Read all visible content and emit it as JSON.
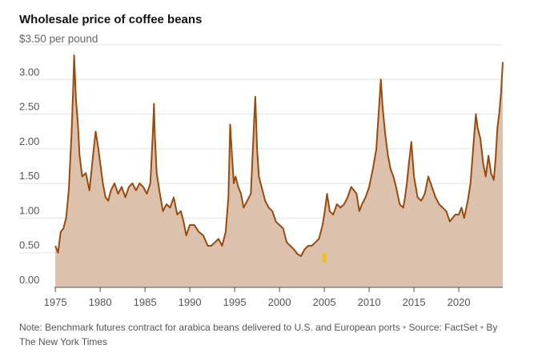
{
  "header": {
    "title": "Wholesale price of coffee beans",
    "subtitle": "$3.50 per pound"
  },
  "footer": {
    "note": "Note: Benchmark futures contract for arabica beans delivered to U.S. and European ports",
    "source": "Source: FactSet",
    "credit": "By The New York Times",
    "separator": "•"
  },
  "chart_data": {
    "type": "area",
    "title": "Wholesale price of coffee beans",
    "subtitle": "$3.50 per pound",
    "xlabel": "",
    "ylabel": "",
    "xlim": [
      1974.9,
      2024.9
    ],
    "ylim": [
      0,
      3.5
    ],
    "y_ticks": [
      0,
      0.5,
      1.0,
      1.5,
      2.0,
      2.5,
      3.0
    ],
    "y_tick_labels": [
      "0.00",
      "0.50",
      "1.00",
      "1.50",
      "2.00",
      "2.50",
      "3.00"
    ],
    "x_ticks": [
      1975,
      1980,
      1985,
      1990,
      1995,
      2000,
      2005,
      2010,
      2015,
      2020
    ],
    "x_tick_labels": [
      "1975",
      "1980",
      "1985",
      "1990",
      "1995",
      "2000",
      "2005",
      "2010",
      "2015",
      "2020"
    ],
    "grid": true,
    "colors": {
      "line": "#9a4a0c",
      "fill": "#dcc1ac",
      "highlight": "#e8c31a",
      "grid": "#e2e2e2",
      "axis": "#555555"
    },
    "highlight": {
      "x": 2005.0,
      "y_range": [
        0.36,
        0.5
      ]
    },
    "x": [
      1975.0,
      1975.3,
      1975.6,
      1975.9,
      1976.2,
      1976.5,
      1976.8,
      1977.0,
      1977.1,
      1977.3,
      1977.5,
      1977.7,
      1978.0,
      1978.4,
      1978.8,
      1979.2,
      1979.5,
      1979.8,
      1980.0,
      1980.3,
      1980.6,
      1980.9,
      1981.2,
      1981.6,
      1982.0,
      1982.4,
      1982.8,
      1983.2,
      1983.6,
      1984.0,
      1984.4,
      1984.8,
      1985.2,
      1985.6,
      1985.9,
      1986.0,
      1986.1,
      1986.3,
      1986.6,
      1987.0,
      1987.4,
      1987.8,
      1988.2,
      1988.6,
      1989.0,
      1989.3,
      1989.6,
      1990.0,
      1990.5,
      1991.0,
      1991.5,
      1992.0,
      1992.4,
      1992.8,
      1993.2,
      1993.6,
      1994.0,
      1994.3,
      1994.5,
      1994.7,
      1994.9,
      1995.1,
      1995.4,
      1995.7,
      1996.0,
      1996.4,
      1996.8,
      1997.0,
      1997.2,
      1997.3,
      1997.5,
      1997.7,
      1998.0,
      1998.4,
      1998.8,
      1999.2,
      1999.6,
      2000.0,
      2000.4,
      2000.8,
      2001.2,
      2001.6,
      2002.0,
      2002.4,
      2002.8,
      2003.2,
      2003.6,
      2004.0,
      2004.4,
      2004.8,
      2005.0,
      2005.3,
      2005.6,
      2006.0,
      2006.4,
      2006.8,
      2007.2,
      2007.6,
      2008.0,
      2008.3,
      2008.6,
      2008.9,
      2009.2,
      2009.6,
      2010.0,
      2010.4,
      2010.8,
      2011.0,
      2011.2,
      2011.3,
      2011.5,
      2011.8,
      2012.1,
      2012.4,
      2012.7,
      2013.0,
      2013.4,
      2013.8,
      2014.0,
      2014.2,
      2014.4,
      2014.7,
      2015.0,
      2015.4,
      2015.8,
      2016.2,
      2016.6,
      2017.0,
      2017.4,
      2017.8,
      2018.2,
      2018.6,
      2019.0,
      2019.3,
      2019.6,
      2020.0,
      2020.3,
      2020.6,
      2021.0,
      2021.3,
      2021.6,
      2021.9,
      2022.1,
      2022.4,
      2022.7,
      2023.0,
      2023.3,
      2023.6,
      2023.9,
      2024.1,
      2024.3,
      2024.5,
      2024.7,
      2024.9
    ],
    "values": [
      0.6,
      0.5,
      0.8,
      0.85,
      1.0,
      1.4,
      2.2,
      2.9,
      3.35,
      2.7,
      2.4,
      1.9,
      1.6,
      1.65,
      1.4,
      1.9,
      2.25,
      2.0,
      1.8,
      1.5,
      1.3,
      1.25,
      1.4,
      1.5,
      1.35,
      1.45,
      1.3,
      1.45,
      1.5,
      1.4,
      1.5,
      1.45,
      1.35,
      1.5,
      2.3,
      2.65,
      2.2,
      1.65,
      1.4,
      1.1,
      1.2,
      1.15,
      1.3,
      1.05,
      1.1,
      0.95,
      0.75,
      0.9,
      0.9,
      0.8,
      0.75,
      0.6,
      0.6,
      0.65,
      0.7,
      0.6,
      0.8,
      1.3,
      2.35,
      1.9,
      1.5,
      1.6,
      1.45,
      1.35,
      1.15,
      1.25,
      1.35,
      1.9,
      2.5,
      2.75,
      2.0,
      1.6,
      1.45,
      1.25,
      1.15,
      1.1,
      0.95,
      0.9,
      0.85,
      0.65,
      0.6,
      0.55,
      0.48,
      0.45,
      0.55,
      0.6,
      0.6,
      0.65,
      0.7,
      0.9,
      1.05,
      1.35,
      1.1,
      1.05,
      1.2,
      1.15,
      1.2,
      1.3,
      1.45,
      1.4,
      1.35,
      1.1,
      1.2,
      1.3,
      1.45,
      1.7,
      2.0,
      2.4,
      2.8,
      3.0,
      2.6,
      2.2,
      1.9,
      1.7,
      1.6,
      1.45,
      1.2,
      1.15,
      1.3,
      1.5,
      1.75,
      2.1,
      1.6,
      1.3,
      1.25,
      1.35,
      1.6,
      1.45,
      1.3,
      1.2,
      1.15,
      1.1,
      0.95,
      1.0,
      1.05,
      1.05,
      1.15,
      1.0,
      1.25,
      1.5,
      2.0,
      2.5,
      2.3,
      2.15,
      1.8,
      1.6,
      1.9,
      1.65,
      1.55,
      1.85,
      2.3,
      2.5,
      2.8,
      3.25
    ]
  }
}
